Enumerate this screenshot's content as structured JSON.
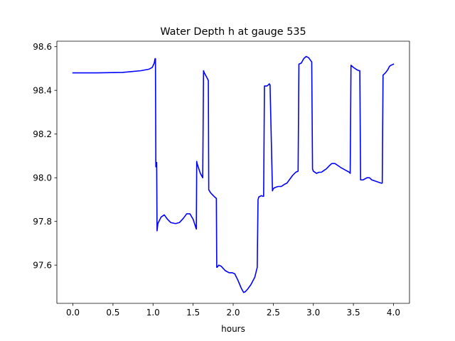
{
  "chart_data": {
    "type": "line",
    "title": "Water Depth h at gauge 535",
    "xlabel": "hours",
    "ylabel": "",
    "xlim": [
      -0.2,
      4.2
    ],
    "ylim": [
      97.425,
      98.625
    ],
    "xticks": [
      0.0,
      0.5,
      1.0,
      1.5,
      2.0,
      2.5,
      3.0,
      3.5,
      4.0
    ],
    "xtick_labels": [
      "0.0",
      "0.5",
      "1.0",
      "1.5",
      "2.0",
      "2.5",
      "3.0",
      "3.5",
      "4.0"
    ],
    "yticks": [
      97.6,
      97.8,
      98.0,
      98.2,
      98.4,
      98.6
    ],
    "ytick_labels": [
      "97.6",
      "97.8",
      "98.0",
      "98.2",
      "98.4",
      "98.6"
    ],
    "grid": false,
    "series": [
      {
        "color": "#0000ff",
        "x": [
          0.0,
          0.3,
          0.62,
          0.85,
          0.95,
          0.99,
          1.015,
          1.025,
          1.03,
          1.035,
          1.045,
          1.05,
          1.06,
          1.1,
          1.14,
          1.18,
          1.22,
          1.28,
          1.33,
          1.38,
          1.42,
          1.46,
          1.5,
          1.54,
          1.545,
          1.55,
          1.59,
          1.62,
          1.63,
          1.64,
          1.67,
          1.69,
          1.695,
          1.72,
          1.76,
          1.79,
          1.795,
          1.8,
          1.82,
          1.85,
          1.9,
          1.95,
          1.99,
          2.02,
          2.06,
          2.1,
          2.13,
          2.15,
          2.18,
          2.22,
          2.27,
          2.3,
          2.31,
          2.32,
          2.35,
          2.37,
          2.38,
          2.39,
          2.42,
          2.44,
          2.45,
          2.46,
          2.49,
          2.5,
          2.52,
          2.56,
          2.6,
          2.64,
          2.67,
          2.7,
          2.74,
          2.78,
          2.81,
          2.82,
          2.85,
          2.88,
          2.91,
          2.94,
          2.97,
          2.98,
          2.99,
          3.0,
          3.04,
          3.07,
          3.1,
          3.12,
          3.16,
          3.2,
          3.23,
          3.27,
          3.31,
          3.35,
          3.4,
          3.45,
          3.46,
          3.47,
          3.5,
          3.54,
          3.57,
          3.58,
          3.59,
          3.62,
          3.67,
          3.7,
          3.73,
          3.77,
          3.81,
          3.85,
          3.86,
          3.87,
          3.9,
          3.93,
          3.95,
          3.97,
          4.0
        ],
        "y": [
          98.48,
          98.48,
          98.482,
          98.49,
          98.497,
          98.505,
          98.525,
          98.545,
          98.545,
          98.05,
          98.07,
          97.757,
          97.79,
          97.82,
          97.83,
          97.81,
          97.795,
          97.79,
          97.795,
          97.815,
          97.835,
          97.835,
          97.81,
          97.765,
          98.075,
          98.065,
          98.02,
          98.0,
          98.49,
          98.48,
          98.46,
          98.445,
          97.945,
          97.93,
          97.915,
          97.905,
          97.59,
          97.59,
          97.6,
          97.595,
          97.575,
          97.565,
          97.565,
          97.56,
          97.53,
          97.495,
          97.475,
          97.478,
          97.49,
          97.51,
          97.545,
          97.59,
          97.9,
          97.912,
          97.918,
          97.915,
          97.915,
          98.42,
          98.42,
          98.425,
          98.43,
          98.425,
          97.94,
          97.95,
          97.955,
          97.96,
          97.96,
          97.97,
          97.975,
          97.99,
          98.01,
          98.025,
          98.03,
          98.52,
          98.525,
          98.545,
          98.555,
          98.55,
          98.535,
          98.53,
          98.04,
          98.03,
          98.02,
          98.025,
          98.025,
          98.03,
          98.04,
          98.055,
          98.065,
          98.065,
          98.055,
          98.045,
          98.035,
          98.025,
          98.02,
          98.515,
          98.505,
          98.495,
          98.49,
          98.49,
          97.99,
          97.99,
          98.0,
          98.0,
          97.99,
          97.985,
          97.98,
          97.975,
          97.975,
          98.47,
          98.48,
          98.495,
          98.51,
          98.515,
          98.52
        ]
      }
    ]
  }
}
